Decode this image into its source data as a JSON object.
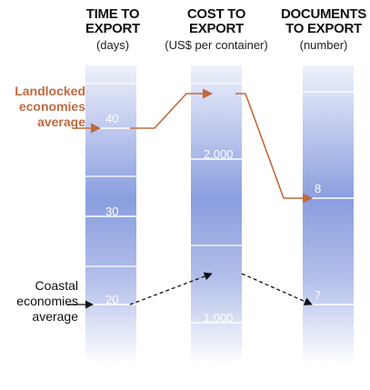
{
  "columns": [
    {
      "title_line1": "TIME TO",
      "title_line2": "EXPORT",
      "unit": "(days)",
      "ticks": [
        {
          "label": "40",
          "value": 40
        },
        {
          "label": "30",
          "value": 30
        },
        {
          "label": "20",
          "value": 20
        }
      ]
    },
    {
      "title_line1": "COST TO",
      "title_line2": "EXPORT",
      "unit": "(US$ per container)",
      "ticks": [
        {
          "label": "2,000",
          "value": 2000
        },
        {
          "label": "1,000",
          "value": 1000
        }
      ]
    },
    {
      "title_line1": "DOCUMENTS",
      "title_line2": "TO EXPORT",
      "unit": "(number)",
      "ticks": [
        {
          "label": "8",
          "value": 8
        },
        {
          "label": "7",
          "value": 7
        }
      ]
    }
  ],
  "groups": [
    {
      "line1": "Landlocked",
      "line2": "economies",
      "line3": "average",
      "color": "#c0693f",
      "line_style": "solid",
      "values": [
        40,
        2400,
        8
      ]
    },
    {
      "line1": "Coastal",
      "line2": "economies",
      "line3": "average",
      "color": "#111111",
      "line_style": "dashed",
      "values": [
        20,
        1300,
        7
      ]
    }
  ]
}
